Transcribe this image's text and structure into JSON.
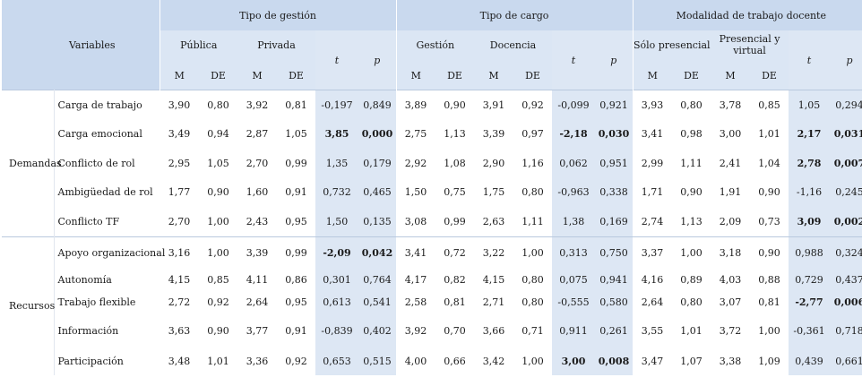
{
  "header": {
    "variables": "Variables",
    "groups": [
      "Tipo de gestión",
      "Tipo de cargo",
      "Modalidad de trabajo docente"
    ],
    "sub": [
      [
        "Pública",
        "Privada"
      ],
      [
        "Gestión",
        "Docencia"
      ],
      [
        "Sólo presencial",
        "Presencial y virtual"
      ]
    ],
    "m": "M",
    "de": "DE",
    "t": "t",
    "p": "p"
  },
  "sections": [
    {
      "label": "Demandas",
      "rows": [
        {
          "name": "Carga de trabajo",
          "values": [
            "3,90",
            "0,80",
            "3,92",
            "0,81",
            "-0,197",
            "0,849",
            "3,89",
            "0,90",
            "3,91",
            "0,92",
            "-0,099",
            "0,921",
            "3,93",
            "0,80",
            "3,78",
            "0,85",
            "1,05",
            "0,294"
          ],
          "bold": []
        },
        {
          "name": "Carga emocional",
          "values": [
            "3,49",
            "0,94",
            "2,87",
            "1,05",
            "3,85",
            "0,000",
            "2,75",
            "1,13",
            "3,39",
            "0,97",
            "-2,18",
            "0,030",
            "3,41",
            "0,98",
            "3,00",
            "1,01",
            "2,17",
            "0,031"
          ],
          "bold": [
            4,
            5,
            10,
            11,
            16,
            17
          ]
        },
        {
          "name": "Conflicto de rol",
          "values": [
            "2,95",
            "1,05",
            "2,70",
            "0,99",
            "1,35",
            "0,179",
            "2,92",
            "1,08",
            "2,90",
            "1,16",
            "0,062",
            "0,951",
            "2,99",
            "1,11",
            "2,41",
            "1,04",
            "2,78",
            "0,007"
          ],
          "bold": [
            16,
            17
          ]
        },
        {
          "name": "Ambigüedad de rol",
          "values": [
            "1,77",
            "0,90",
            "1,60",
            "0,91",
            "0,732",
            "0,465",
            "1,50",
            "0,75",
            "1,75",
            "0,80",
            "-0,963",
            "0,338",
            "1,71",
            "0,90",
            "1,91",
            "0,90",
            "-1,16",
            "0,245"
          ],
          "bold": []
        },
        {
          "name": "Conflicto TF",
          "values": [
            "2,70",
            "1,00",
            "2,43",
            "0,95",
            "1,50",
            "0,135",
            "3,08",
            "0,99",
            "2,63",
            "1,11",
            "1,38",
            "0,169",
            "2,74",
            "1,13",
            "2,09",
            "0,73",
            "3,09",
            "0,002"
          ],
          "bold": [
            16,
            17
          ]
        }
      ]
    },
    {
      "label": "Recursos",
      "rows": [
        {
          "name": "Apoyo organizacional",
          "values": [
            "3,16",
            "1,00",
            "3,39",
            "0,99",
            "-2,09",
            "0,042",
            "3,41",
            "0,72",
            "3,22",
            "1,00",
            "0,313",
            "0,750",
            "3,37",
            "1,00",
            "3,18",
            "0,90",
            "0,988",
            "0,324"
          ],
          "bold": [
            4,
            5
          ]
        },
        {
          "name": "Autonomía",
          "values": [
            "4,15",
            "0,85",
            "4,11",
            "0,86",
            "0,301",
            "0,764",
            "4,17",
            "0,82",
            "4,15",
            "0,80",
            "0,075",
            "0,941",
            "4,16",
            "0,89",
            "4,03",
            "0,88",
            "0,729",
            "0,437"
          ],
          "bold": []
        },
        {
          "name": "Trabajo flexible",
          "values": [
            "2,72",
            "0,92",
            "2,64",
            "0,95",
            "0,613",
            "0,541",
            "2,58",
            "0,81",
            "2,71",
            "0,80",
            "-0,555",
            "0,580",
            "2,64",
            "0,80",
            "3,07",
            "0,81",
            "-2,77",
            "0,006"
          ],
          "bold": [
            16,
            17
          ]
        },
        {
          "name": "Información",
          "values": [
            "3,63",
            "0,90",
            "3,77",
            "0,91",
            "-0,839",
            "0,402",
            "3,92",
            "0,70",
            "3,66",
            "0,71",
            "0,911",
            "0,261",
            "3,55",
            "1,01",
            "3,72",
            "1,00",
            "-0,361",
            "0,718"
          ],
          "bold": []
        },
        {
          "name": "Participación",
          "values": [
            "3,48",
            "1,01",
            "3,36",
            "0,92",
            "0,653",
            "0,515",
            "4,00",
            "0,66",
            "3,42",
            "1,00",
            "3,00",
            "0,008",
            "3,47",
            "1,07",
            "3,38",
            "1,09",
            "0,439",
            "0,661"
          ],
          "bold": [
            10,
            11
          ]
        }
      ]
    }
  ]
}
